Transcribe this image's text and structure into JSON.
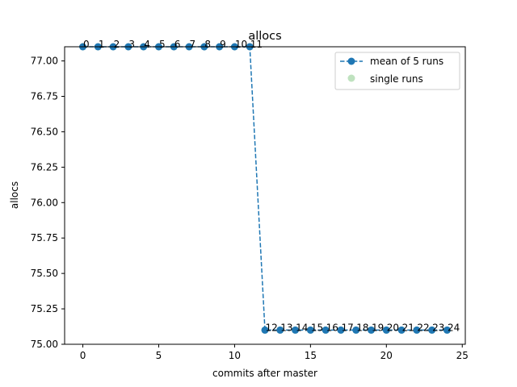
{
  "chart_data": {
    "type": "line",
    "title": "allocs",
    "xlabel": "commits after master",
    "ylabel": "allocs",
    "xlim": [
      -1.2,
      25.2
    ],
    "ylim": [
      75.0,
      77.1
    ],
    "xticks": [
      0,
      5,
      10,
      15,
      20,
      25
    ],
    "xtick_labels": [
      "0",
      "5",
      "10",
      "15",
      "20",
      "25"
    ],
    "yticks": [
      75.0,
      75.25,
      75.5,
      75.75,
      76.0,
      76.25,
      76.5,
      76.75,
      77.0
    ],
    "ytick_labels": [
      "75.00",
      "75.25",
      "75.50",
      "75.75",
      "76.00",
      "76.25",
      "76.50",
      "76.75",
      "77.00"
    ],
    "grid": false,
    "legend_position": "top-right",
    "x": [
      0,
      1,
      2,
      3,
      4,
      5,
      6,
      7,
      8,
      9,
      10,
      11,
      12,
      13,
      14,
      15,
      16,
      17,
      18,
      19,
      20,
      21,
      22,
      23,
      24
    ],
    "point_labels": [
      "0",
      "1",
      "2",
      "3",
      "4",
      "5",
      "6",
      "7",
      "8",
      "9",
      "10",
      "11",
      "12",
      "13",
      "14",
      "15",
      "16",
      "17",
      "18",
      "19",
      "20",
      "21",
      "22",
      "23",
      "24"
    ],
    "series": [
      {
        "name": "mean of 5 runs",
        "style": "dashed-line-with-markers",
        "color": "#1f77b4",
        "values": [
          77.1,
          77.1,
          77.1,
          77.1,
          77.1,
          77.1,
          77.1,
          77.1,
          77.1,
          77.1,
          77.1,
          77.1,
          75.1,
          75.1,
          75.1,
          75.1,
          75.1,
          75.1,
          75.1,
          75.1,
          75.1,
          75.1,
          75.1,
          75.1,
          75.1
        ]
      },
      {
        "name": "single runs",
        "style": "scatter",
        "color": "#2ca02c",
        "alpha": 0.3,
        "values": [
          77.1,
          77.1,
          77.1,
          77.1,
          77.1,
          77.1,
          77.1,
          77.1,
          77.1,
          77.1,
          77.1,
          77.1,
          75.1,
          75.1,
          75.1,
          75.1,
          75.1,
          75.1,
          75.1,
          75.1,
          75.1,
          75.1,
          75.1,
          75.1,
          75.1
        ]
      }
    ]
  }
}
